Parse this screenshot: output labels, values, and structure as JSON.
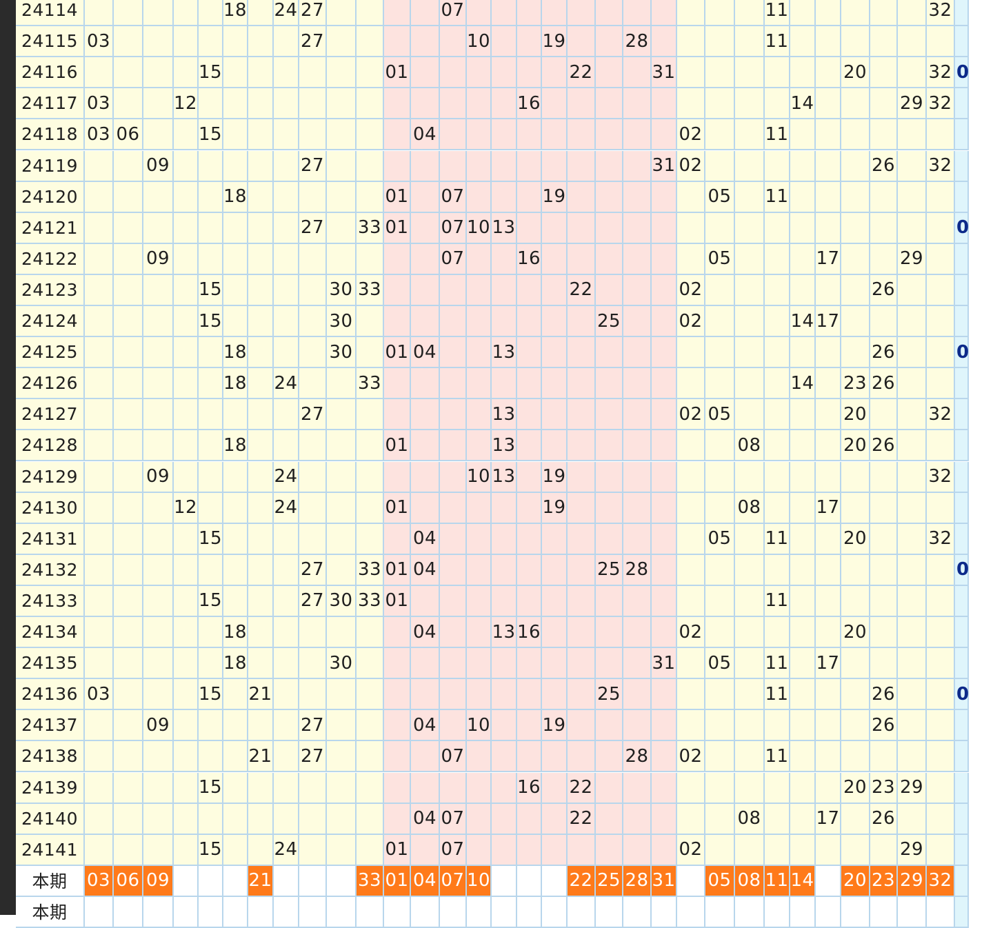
{
  "colors": {
    "yellow": "#fefde0",
    "pink": "#fde3df",
    "cyan": "#dff5fb",
    "highlight": "#ff7a1a",
    "grid_line": "#b8d6ec",
    "row_label_bg": "#fefde0",
    "sidebar": "#2b2b2b"
  },
  "current_label": "本期",
  "next_label": "本期",
  "rows": [
    {
      "issue": "24114",
      "cells": {
        "5": "18",
        "7": "24",
        "8": "27",
        "13": "07",
        "25": "11",
        "31": "32"
      }
    },
    {
      "issue": "24115",
      "cells": {
        "0": "03",
        "8": "27",
        "14": "10",
        "17": "19",
        "20": "28",
        "25": "11"
      }
    },
    {
      "issue": "24116",
      "cells": {
        "4": "15",
        "11": "01",
        "18": "22",
        "21": "31",
        "28": "20",
        "31": "32",
        "32": "0"
      }
    },
    {
      "issue": "24117",
      "cells": {
        "0": "03",
        "3": "12",
        "16": "16",
        "26": "14",
        "30": "29",
        "31": "32"
      }
    },
    {
      "issue": "24118",
      "cells": {
        "0": "03",
        "1": "06",
        "4": "15",
        "12": "04",
        "22": "02",
        "25": "11"
      }
    },
    {
      "issue": "24119",
      "cells": {
        "2": "09",
        "8": "27",
        "21": "31",
        "22": "02",
        "29": "26",
        "31": "32"
      }
    },
    {
      "issue": "24120",
      "cells": {
        "5": "18",
        "11": "01",
        "13": "07",
        "17": "19",
        "23": "05",
        "25": "11"
      }
    },
    {
      "issue": "24121",
      "cells": {
        "8": "27",
        "10": "33",
        "11": "01",
        "13": "07",
        "14": "10",
        "15": "13",
        "32": "0"
      }
    },
    {
      "issue": "24122",
      "cells": {
        "2": "09",
        "13": "07",
        "16": "16",
        "23": "05",
        "27": "17",
        "30": "29"
      }
    },
    {
      "issue": "24123",
      "cells": {
        "4": "15",
        "9": "30",
        "10": "33",
        "18": "22",
        "22": "02",
        "29": "26"
      }
    },
    {
      "issue": "24124",
      "cells": {
        "4": "15",
        "9": "30",
        "19": "25",
        "22": "02",
        "26": "14",
        "27": "17"
      }
    },
    {
      "issue": "24125",
      "cells": {
        "5": "18",
        "9": "30",
        "11": "01",
        "12": "04",
        "15": "13",
        "29": "26",
        "32": "0"
      }
    },
    {
      "issue": "24126",
      "cells": {
        "5": "18",
        "7": "24",
        "10": "33",
        "26": "14",
        "28": "23",
        "29": "26"
      }
    },
    {
      "issue": "24127",
      "cells": {
        "8": "27",
        "15": "13",
        "22": "02",
        "23": "05",
        "28": "20",
        "31": "32"
      }
    },
    {
      "issue": "24128",
      "cells": {
        "5": "18",
        "11": "01",
        "15": "13",
        "24": "08",
        "28": "20",
        "29": "26"
      }
    },
    {
      "issue": "24129",
      "cells": {
        "2": "09",
        "7": "24",
        "14": "10",
        "15": "13",
        "17": "19",
        "31": "32"
      }
    },
    {
      "issue": "24130",
      "cells": {
        "3": "12",
        "7": "24",
        "11": "01",
        "17": "19",
        "24": "08",
        "27": "17"
      }
    },
    {
      "issue": "24131",
      "cells": {
        "4": "15",
        "12": "04",
        "23": "05",
        "25": "11",
        "28": "20",
        "31": "32"
      }
    },
    {
      "issue": "24132",
      "cells": {
        "8": "27",
        "10": "33",
        "11": "01",
        "12": "04",
        "19": "25",
        "20": "28",
        "32": "0"
      }
    },
    {
      "issue": "24133",
      "cells": {
        "4": "15",
        "8": "27",
        "9": "30",
        "10": "33",
        "11": "01",
        "25": "11"
      }
    },
    {
      "issue": "24134",
      "cells": {
        "5": "18",
        "12": "04",
        "15": "13",
        "16": "16",
        "22": "02",
        "28": "20"
      }
    },
    {
      "issue": "24135",
      "cells": {
        "5": "18",
        "9": "30",
        "21": "31",
        "23": "05",
        "25": "11",
        "27": "17"
      }
    },
    {
      "issue": "24136",
      "cells": {
        "0": "03",
        "4": "15",
        "6": "21",
        "19": "25",
        "25": "11",
        "29": "26",
        "32": "0"
      }
    },
    {
      "issue": "24137",
      "cells": {
        "2": "09",
        "8": "27",
        "12": "04",
        "14": "10",
        "17": "19",
        "29": "26"
      }
    },
    {
      "issue": "24138",
      "cells": {
        "6": "21",
        "8": "27",
        "13": "07",
        "20": "28",
        "22": "02",
        "25": "11"
      }
    },
    {
      "issue": "24139",
      "cells": {
        "4": "15",
        "16": "16",
        "18": "22",
        "28": "20",
        "29": "23",
        "30": "29"
      }
    },
    {
      "issue": "24140",
      "cells": {
        "12": "04",
        "13": "07",
        "18": "22",
        "24": "08",
        "27": "17",
        "29": "26"
      }
    },
    {
      "issue": "24141",
      "cells": {
        "4": "15",
        "7": "24",
        "11": "01",
        "13": "07",
        "22": "02",
        "30": "29"
      }
    }
  ],
  "current": {
    "0": "03",
    "1": "06",
    "2": "09",
    "6": "21",
    "10": "33",
    "11": "01",
    "12": "04",
    "13": "07",
    "14": "10",
    "18": "22",
    "19": "25",
    "20": "28",
    "21": "31",
    "23": "05",
    "24": "08",
    "25": "11",
    "26": "14",
    "28": "20",
    "29": "23",
    "30": "29",
    "31": "32"
  }
}
